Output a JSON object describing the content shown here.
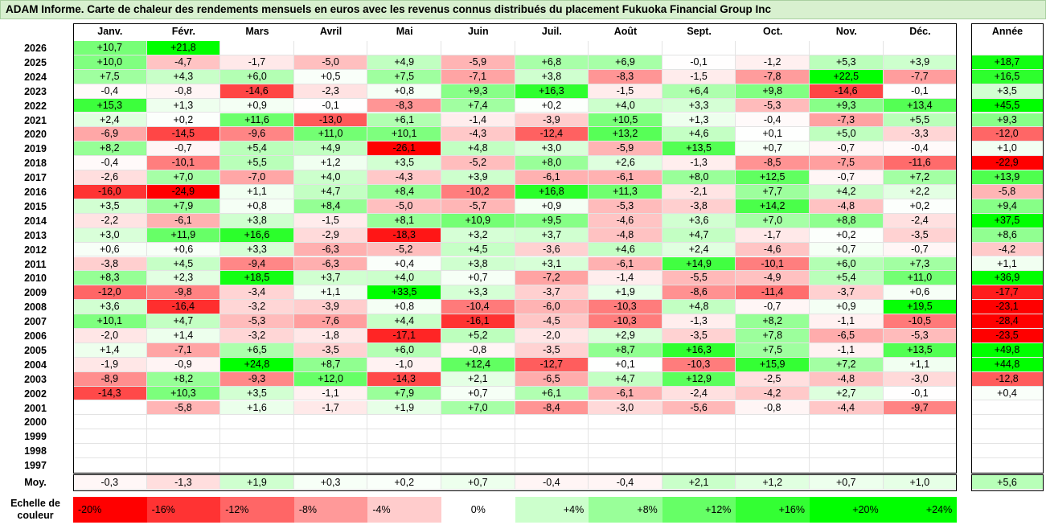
{
  "title": "ADAM Informe. Carte de chaleur des rendements mensuels en euros avec les revenus connus distribués du placement Fukuoka Financial Group Inc",
  "chart_data": {
    "type": "heatmap",
    "title": "ADAM Informe. Carte de chaleur des rendements mensuels en euros avec les revenus connus distribués du placement Fukuoka Financial Group Inc",
    "months": [
      "Janv.",
      "Févr.",
      "Mars",
      "Avril",
      "Mai",
      "Juin",
      "Juil.",
      "Août",
      "Sept.",
      "Oct.",
      "Nov.",
      "Déc."
    ],
    "year_label": "Année",
    "rows": [
      {
        "year": "2026",
        "values": [
          "+10,7",
          "+21,8",
          "",
          "",
          "",
          "",
          "",
          "",
          "",
          "",
          "",
          ""
        ],
        "annual": ""
      },
      {
        "year": "2025",
        "values": [
          "+10,0",
          "-4,7",
          "-1,7",
          "-5,0",
          "+4,9",
          "-5,9",
          "+6,8",
          "+6,9",
          "-0,1",
          "-1,2",
          "+5,3",
          "+3,9"
        ],
        "annual": "+18,7"
      },
      {
        "year": "2024",
        "values": [
          "+7,5",
          "+4,3",
          "+6,0",
          "+0,5",
          "+7,5",
          "-7,1",
          "+3,8",
          "-8,3",
          "-1,5",
          "-7,8",
          "+22,5",
          "-7,7"
        ],
        "annual": "+16,5"
      },
      {
        "year": "2023",
        "values": [
          "-0,4",
          "-0,8",
          "-14,6",
          "-2,3",
          "+0,8",
          "+9,3",
          "+16,3",
          "-1,5",
          "+6,4",
          "+9,8",
          "-14,6",
          "-0,1"
        ],
        "annual": "+3,5"
      },
      {
        "year": "2022",
        "values": [
          "+15,3",
          "+1,3",
          "+0,9",
          "-0,1",
          "-8,3",
          "+7,4",
          "+0,2",
          "+4,0",
          "+3,3",
          "-5,3",
          "+9,3",
          "+13,4"
        ],
        "annual": "+45,5"
      },
      {
        "year": "2021",
        "values": [
          "+2,4",
          "+0,2",
          "+11,6",
          "-13,0",
          "+6,1",
          "-1,4",
          "-3,9",
          "+10,5",
          "+1,3",
          "-0,4",
          "-7,3",
          "+5,5"
        ],
        "annual": "+9,3"
      },
      {
        "year": "2020",
        "values": [
          "-6,9",
          "-14,5",
          "-9,6",
          "+11,0",
          "+10,1",
          "-4,3",
          "-12,4",
          "+13,2",
          "+4,6",
          "+0,1",
          "+5,0",
          "-3,3"
        ],
        "annual": "-12,0"
      },
      {
        "year": "2019",
        "values": [
          "+8,2",
          "-0,7",
          "+5,4",
          "+4,9",
          "-26,1",
          "+4,8",
          "+3,0",
          "-5,9",
          "+13,5",
          "+0,7",
          "-0,7",
          "-0,4"
        ],
        "annual": "+1,0"
      },
      {
        "year": "2018",
        "values": [
          "-0,4",
          "-10,1",
          "+5,5",
          "+1,2",
          "+3,5",
          "-5,2",
          "+8,0",
          "+2,6",
          "-1,3",
          "-8,5",
          "-7,5",
          "-11,6"
        ],
        "annual": "-22,9"
      },
      {
        "year": "2017",
        "values": [
          "-2,6",
          "+7,0",
          "-7,0",
          "+4,0",
          "-4,3",
          "+3,9",
          "-6,1",
          "-6,1",
          "+8,0",
          "+12,5",
          "-0,7",
          "+7,2"
        ],
        "annual": "+13,9"
      },
      {
        "year": "2016",
        "values": [
          "-16,0",
          "-24,9",
          "+1,1",
          "+4,7",
          "+8,4",
          "-10,2",
          "+16,8",
          "+11,3",
          "-2,1",
          "+7,7",
          "+4,2",
          "+2,2"
        ],
        "annual": "-5,8"
      },
      {
        "year": "2015",
        "values": [
          "+3,5",
          "+7,9",
          "+0,8",
          "+8,4",
          "-5,0",
          "-5,7",
          "+0,9",
          "-5,3",
          "-3,8",
          "+14,2",
          "-4,8",
          "+0,2"
        ],
        "annual": "+9,4"
      },
      {
        "year": "2014",
        "values": [
          "-2,2",
          "-6,1",
          "+3,8",
          "-1,5",
          "+8,1",
          "+10,9",
          "+9,5",
          "-4,6",
          "+3,6",
          "+7,0",
          "+8,8",
          "-2,4"
        ],
        "annual": "+37,5"
      },
      {
        "year": "2013",
        "values": [
          "+3,0",
          "+11,9",
          "+16,6",
          "-2,9",
          "-18,3",
          "+3,2",
          "+3,7",
          "-4,8",
          "+4,7",
          "-1,7",
          "+0,2",
          "-3,5"
        ],
        "annual": "+8,6"
      },
      {
        "year": "2012",
        "values": [
          "+0,6",
          "+0,6",
          "+3,3",
          "-6,3",
          "-5,2",
          "+4,5",
          "-3,6",
          "+4,6",
          "+2,4",
          "-4,6",
          "+0,7",
          "-0,7"
        ],
        "annual": "-4,2"
      },
      {
        "year": "2011",
        "values": [
          "-3,8",
          "+4,5",
          "-9,4",
          "-6,3",
          "+0,4",
          "+3,8",
          "+3,1",
          "-6,1",
          "+14,9",
          "-10,1",
          "+6,0",
          "+7,3"
        ],
        "annual": "+1,1"
      },
      {
        "year": "2010",
        "values": [
          "+8,3",
          "+2,3",
          "+18,5",
          "+3,7",
          "+4,0",
          "+0,7",
          "-7,2",
          "-1,4",
          "-5,5",
          "-4,9",
          "+5,4",
          "+11,0"
        ],
        "annual": "+36,9"
      },
      {
        "year": "2009",
        "values": [
          "-12,0",
          "-9,8",
          "-3,4",
          "+1,1",
          "+33,5",
          "+3,3",
          "-3,7",
          "+1,9",
          "-8,6",
          "-11,4",
          "-3,7",
          "+0,6"
        ],
        "annual": "-17,7"
      },
      {
        "year": "2008",
        "values": [
          "+3,6",
          "-16,4",
          "-3,2",
          "-3,9",
          "+0,8",
          "-10,4",
          "-6,0",
          "-10,3",
          "+4,8",
          "-0,7",
          "+0,9",
          "+19,5"
        ],
        "annual": "-23,1"
      },
      {
        "year": "2007",
        "values": [
          "+10,1",
          "+4,7",
          "-5,3",
          "-7,6",
          "+4,4",
          "-16,1",
          "-4,5",
          "-10,3",
          "-1,3",
          "+8,2",
          "-1,1",
          "-10,5"
        ],
        "annual": "-28,4"
      },
      {
        "year": "2006",
        "values": [
          "-2,0",
          "+1,4",
          "-3,2",
          "-1,8",
          "-17,1",
          "+5,2",
          "-2,0",
          "+2,9",
          "-3,5",
          "+7,8",
          "-6,5",
          "-5,3"
        ],
        "annual": "-23,5"
      },
      {
        "year": "2005",
        "values": [
          "+1,4",
          "-7,1",
          "+6,5",
          "-3,5",
          "+6,0",
          "-0,8",
          "-3,5",
          "+8,7",
          "+16,3",
          "+7,5",
          "-1,1",
          "+13,5"
        ],
        "annual": "+49,8"
      },
      {
        "year": "2004",
        "values": [
          "-1,9",
          "-0,9",
          "+24,8",
          "+8,7",
          "-1,0",
          "+12,4",
          "-12,7",
          "+0,1",
          "-10,3",
          "+15,9",
          "+7,2",
          "+1,1"
        ],
        "annual": "+44,8"
      },
      {
        "year": "2003",
        "values": [
          "-8,9",
          "+8,2",
          "-9,3",
          "+12,0",
          "-14,3",
          "+2,1",
          "-6,5",
          "+4,7",
          "+12,9",
          "-2,5",
          "-4,8",
          "-3,0"
        ],
        "annual": "-12,8"
      },
      {
        "year": "2002",
        "values": [
          "-14,3",
          "+10,3",
          "+3,5",
          "-1,1",
          "+7,9",
          "+0,7",
          "+6,1",
          "-6,1",
          "-2,4",
          "-4,2",
          "+2,7",
          "-0,1"
        ],
        "annual": "+0,4"
      },
      {
        "year": "2001",
        "values": [
          "",
          "-5,8",
          "+1,6",
          "-1,7",
          "+1,9",
          "+7,0",
          "-8,4",
          "-3,0",
          "-5,6",
          "-0,8",
          "-4,4",
          "-9,7"
        ],
        "annual": ""
      },
      {
        "year": "2000",
        "values": [
          "",
          "",
          "",
          "",
          "",
          "",
          "",
          "",
          "",
          "",
          "",
          ""
        ],
        "annual": ""
      },
      {
        "year": "1999",
        "values": [
          "",
          "",
          "",
          "",
          "",
          "",
          "",
          "",
          "",
          "",
          "",
          ""
        ],
        "annual": ""
      },
      {
        "year": "1998",
        "values": [
          "",
          "",
          "",
          "",
          "",
          "",
          "",
          "",
          "",
          "",
          "",
          ""
        ],
        "annual": ""
      },
      {
        "year": "1997",
        "values": [
          "",
          "",
          "",
          "",
          "",
          "",
          "",
          "",
          "",
          "",
          "",
          ""
        ],
        "annual": ""
      }
    ],
    "average": {
      "label": "Moy.",
      "values": [
        "-0,3",
        "-1,3",
        "+1,9",
        "+0,3",
        "+0,2",
        "+0,7",
        "-0,4",
        "-0,4",
        "+2,1",
        "+1,2",
        "+0,7",
        "+1,0"
      ],
      "annual": "+5,6"
    },
    "scale": {
      "label_line1": "Echelle de",
      "label_line2": "couleur",
      "steps": [
        "-20%",
        "-16%",
        "-12%",
        "-8%",
        "-4%",
        "0%",
        "+4%",
        "+8%",
        "+12%",
        "+16%",
        "+20%",
        "+24%"
      ]
    },
    "colors": {
      "negative_max": "#ff0000",
      "positive_max": "#00ff00",
      "neutral": "#ffffff"
    }
  }
}
